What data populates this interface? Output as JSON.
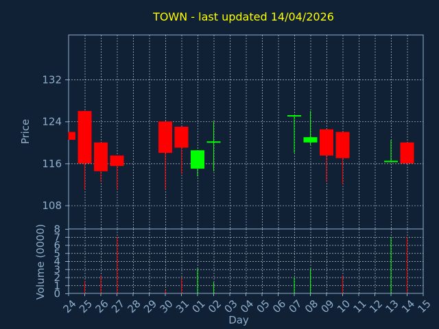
{
  "chart_data": {
    "type": "candlestick",
    "title": "TOWN - last updated 14/04/2026",
    "xlabel": "Day",
    "price_panel": {
      "ylabel": "Price",
      "yticks": [
        108,
        116,
        124,
        132
      ],
      "ylim": [
        103.5,
        140.5
      ]
    },
    "volume_panel": {
      "ylabel": "Volume (0000)",
      "yticks": [
        0,
        1,
        2,
        3,
        4,
        5,
        6,
        7,
        8
      ],
      "ylim": [
        0,
        8
      ]
    },
    "categories": [
      "24",
      "25",
      "26",
      "27",
      "28",
      "29",
      "30",
      "31",
      "01",
      "02",
      "03",
      "04",
      "05",
      "06",
      "07",
      "08",
      "09",
      "10",
      "11",
      "12",
      "13",
      "14",
      "15"
    ],
    "candles": [
      {
        "day": "24",
        "open": 122.0,
        "close": 120.5,
        "high": 122.0,
        "low": 120.5,
        "volume": 0
      },
      {
        "day": "25",
        "open": 126.0,
        "close": 116.0,
        "high": 126.0,
        "low": 111.0,
        "volume": 1.5
      },
      {
        "day": "26",
        "open": 120.0,
        "close": 114.5,
        "high": 120.0,
        "low": 112.5,
        "volume": 2.2
      },
      {
        "day": "27",
        "open": 117.5,
        "close": 115.5,
        "high": 117.5,
        "low": 111.0,
        "volume": 7.0
      },
      {
        "day": "30",
        "open": 124.0,
        "close": 118.0,
        "high": 124.0,
        "low": 111.0,
        "volume": 0.4
      },
      {
        "day": "31",
        "open": 123.0,
        "close": 119.0,
        "high": 123.0,
        "low": 114.0,
        "volume": 1.9
      },
      {
        "day": "01",
        "open": 115.0,
        "close": 118.5,
        "high": 118.5,
        "low": 113.5,
        "volume": 3.1
      },
      {
        "day": "02",
        "open": 120.0,
        "close": 120.2,
        "high": 124.0,
        "low": 114.5,
        "volume": 1.4
      },
      {
        "day": "07",
        "open": 125.0,
        "close": 125.2,
        "high": 125.2,
        "low": 118.0,
        "volume": 2.0
      },
      {
        "day": "08",
        "open": 120.0,
        "close": 121.0,
        "high": 126.0,
        "low": 119.5,
        "volume": 3.1
      },
      {
        "day": "09",
        "open": 122.5,
        "close": 117.5,
        "high": 122.5,
        "low": 112.5,
        "volume": 0
      },
      {
        "day": "10",
        "open": 122.0,
        "close": 117.0,
        "high": 122.0,
        "low": 112.0,
        "volume": 2.2
      },
      {
        "day": "13",
        "open": 116.3,
        "close": 116.5,
        "high": 120.5,
        "low": 116.3,
        "volume": 7.0
      },
      {
        "day": "14",
        "open": 120.0,
        "close": 116.0,
        "high": 120.0,
        "low": 116.0,
        "volume": 7.0
      }
    ],
    "colors": {
      "background": "#102035",
      "up": "#00ff00",
      "down": "#ff0000",
      "title": "#ffff00",
      "text": "#8fb0cc",
      "grid": "#ffffff"
    },
    "grid": true
  }
}
